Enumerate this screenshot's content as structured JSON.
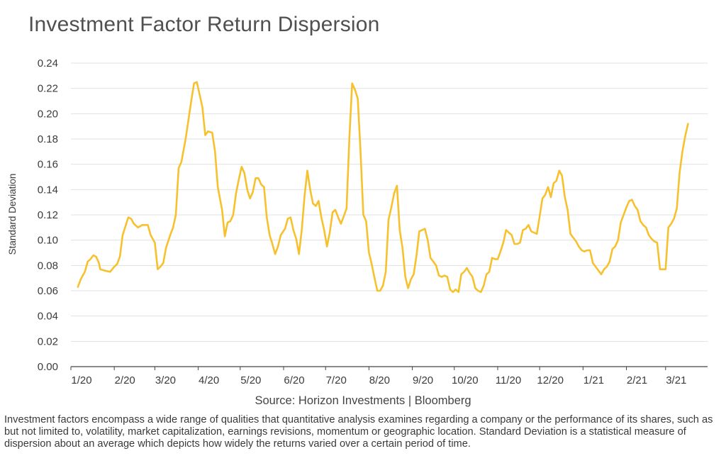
{
  "title": "Investment Factor Return Dispersion",
  "source": "Source: Horizon Investments | Bloomberg",
  "footnote": "Investment factors encompass a wide range of qualities that quantitative analysis examines regarding a company or the performance of its shares, such as but not limited to, volatility, market capitalization, earnings revisions, momentum or geographic location. Standard Deviation is a statistical measure of dispersion about an average which depicts how widely the returns varied over a certain period of time.",
  "colors": {
    "line": "#F7C12E",
    "grid": "#e1e1e1",
    "axis": "#444444"
  },
  "chart_data": {
    "type": "line",
    "ylabel": "Standard Deviation",
    "ylim": [
      0,
      0.24
    ],
    "yticks": [
      "0.00",
      "0.02",
      "0.04",
      "0.06",
      "0.08",
      "0.10",
      "0.12",
      "0.14",
      "0.16",
      "0.18",
      "0.20",
      "0.22",
      "0.24"
    ],
    "xlim": [
      "2020-01-01",
      "2021-03-31"
    ],
    "xticks": [
      {
        "label": "1/20",
        "date": "2020-01-01"
      },
      {
        "label": "2/20",
        "date": "2020-02-01"
      },
      {
        "label": "3/20",
        "date": "2020-03-01"
      },
      {
        "label": "4/20",
        "date": "2020-04-01"
      },
      {
        "label": "5/20",
        "date": "2020-05-01"
      },
      {
        "label": "6/20",
        "date": "2020-06-01"
      },
      {
        "label": "7/20",
        "date": "2020-07-01"
      },
      {
        "label": "8/20",
        "date": "2020-08-01"
      },
      {
        "label": "9/20",
        "date": "2020-09-01"
      },
      {
        "label": "10/20",
        "date": "2020-10-01"
      },
      {
        "label": "11/20",
        "date": "2020-11-01"
      },
      {
        "label": "12/20",
        "date": "2020-12-01"
      },
      {
        "label": "1/21",
        "date": "2021-01-01"
      },
      {
        "label": "2/21",
        "date": "2021-02-01"
      },
      {
        "label": "3/21",
        "date": "2021-03-01"
      }
    ],
    "grid": true,
    "series": [
      {
        "values": [
          [
            "2020-01-06",
            0.063
          ],
          [
            "2020-01-08",
            0.069
          ],
          [
            "2020-01-11",
            0.075
          ],
          [
            "2020-01-13",
            0.083
          ],
          [
            "2020-01-15",
            0.085
          ],
          [
            "2020-01-17",
            0.088
          ],
          [
            "2020-01-19",
            0.087
          ],
          [
            "2020-01-21",
            0.082
          ],
          [
            "2020-01-22",
            0.077
          ],
          [
            "2020-01-25",
            0.076
          ],
          [
            "2020-01-29",
            0.075
          ],
          [
            "2020-02-01",
            0.079
          ],
          [
            "2020-02-03",
            0.081
          ],
          [
            "2020-02-05",
            0.087
          ],
          [
            "2020-02-07",
            0.104
          ],
          [
            "2020-02-09",
            0.111
          ],
          [
            "2020-02-11",
            0.118
          ],
          [
            "2020-02-13",
            0.117
          ],
          [
            "2020-02-15",
            0.113
          ],
          [
            "2020-02-18",
            0.11
          ],
          [
            "2020-02-21",
            0.112
          ],
          [
            "2020-02-25",
            0.112
          ],
          [
            "2020-02-27",
            0.104
          ],
          [
            "2020-03-01",
            0.098
          ],
          [
            "2020-03-03",
            0.077
          ],
          [
            "2020-03-05",
            0.079
          ],
          [
            "2020-03-07",
            0.082
          ],
          [
            "2020-03-09",
            0.094
          ],
          [
            "2020-03-12",
            0.104
          ],
          [
            "2020-03-14",
            0.11
          ],
          [
            "2020-03-16",
            0.12
          ],
          [
            "2020-03-18",
            0.157
          ],
          [
            "2020-03-20",
            0.162
          ],
          [
            "2020-03-23",
            0.18
          ],
          [
            "2020-03-25",
            0.195
          ],
          [
            "2020-03-27",
            0.21
          ],
          [
            "2020-03-29",
            0.224
          ],
          [
            "2020-03-31",
            0.225
          ],
          [
            "2020-04-02",
            0.215
          ],
          [
            "2020-04-04",
            0.205
          ],
          [
            "2020-04-06",
            0.183
          ],
          [
            "2020-04-08",
            0.186
          ],
          [
            "2020-04-11",
            0.185
          ],
          [
            "2020-04-13",
            0.17
          ],
          [
            "2020-04-15",
            0.142
          ],
          [
            "2020-04-18",
            0.124
          ],
          [
            "2020-04-20",
            0.103
          ],
          [
            "2020-04-22",
            0.114
          ],
          [
            "2020-04-24",
            0.115
          ],
          [
            "2020-04-26",
            0.12
          ],
          [
            "2020-04-28",
            0.137
          ],
          [
            "2020-04-30",
            0.148
          ],
          [
            "2020-05-02",
            0.158
          ],
          [
            "2020-05-04",
            0.153
          ],
          [
            "2020-05-06",
            0.14
          ],
          [
            "2020-05-08",
            0.133
          ],
          [
            "2020-05-10",
            0.138
          ],
          [
            "2020-05-12",
            0.149
          ],
          [
            "2020-05-14",
            0.149
          ],
          [
            "2020-05-16",
            0.144
          ],
          [
            "2020-05-18",
            0.142
          ],
          [
            "2020-05-20",
            0.118
          ],
          [
            "2020-05-22",
            0.104
          ],
          [
            "2020-05-24",
            0.097
          ],
          [
            "2020-05-26",
            0.089
          ],
          [
            "2020-05-28",
            0.095
          ],
          [
            "2020-05-30",
            0.104
          ],
          [
            "2020-06-02",
            0.109
          ],
          [
            "2020-06-04",
            0.117
          ],
          [
            "2020-06-06",
            0.118
          ],
          [
            "2020-06-08",
            0.108
          ],
          [
            "2020-06-10",
            0.101
          ],
          [
            "2020-06-12",
            0.089
          ],
          [
            "2020-06-14",
            0.108
          ],
          [
            "2020-06-16",
            0.135
          ],
          [
            "2020-06-18",
            0.155
          ],
          [
            "2020-06-20",
            0.14
          ],
          [
            "2020-06-22",
            0.129
          ],
          [
            "2020-06-24",
            0.127
          ],
          [
            "2020-06-26",
            0.131
          ],
          [
            "2020-06-28",
            0.118
          ],
          [
            "2020-06-30",
            0.108
          ],
          [
            "2020-07-02",
            0.095
          ],
          [
            "2020-07-04",
            0.106
          ],
          [
            "2020-07-06",
            0.122
          ],
          [
            "2020-07-08",
            0.124
          ],
          [
            "2020-07-10",
            0.118
          ],
          [
            "2020-07-12",
            0.113
          ],
          [
            "2020-07-14",
            0.119
          ],
          [
            "2020-07-16",
            0.125
          ],
          [
            "2020-07-18",
            0.181
          ],
          [
            "2020-07-20",
            0.224
          ],
          [
            "2020-07-22",
            0.219
          ],
          [
            "2020-07-24",
            0.212
          ],
          [
            "2020-07-26",
            0.17
          ],
          [
            "2020-07-28",
            0.12
          ],
          [
            "2020-07-30",
            0.115
          ],
          [
            "2020-08-01",
            0.09
          ],
          [
            "2020-08-03",
            0.081
          ],
          [
            "2020-08-05",
            0.07
          ],
          [
            "2020-08-07",
            0.06
          ],
          [
            "2020-08-09",
            0.06
          ],
          [
            "2020-08-11",
            0.064
          ],
          [
            "2020-08-13",
            0.075
          ],
          [
            "2020-08-15",
            0.116
          ],
          [
            "2020-08-17",
            0.126
          ],
          [
            "2020-08-19",
            0.137
          ],
          [
            "2020-08-21",
            0.143
          ],
          [
            "2020-08-23",
            0.108
          ],
          [
            "2020-08-25",
            0.094
          ],
          [
            "2020-08-27",
            0.071
          ],
          [
            "2020-08-29",
            0.062
          ],
          [
            "2020-08-31",
            0.069
          ],
          [
            "2020-09-02",
            0.073
          ],
          [
            "2020-09-04",
            0.088
          ],
          [
            "2020-09-06",
            0.107
          ],
          [
            "2020-09-08",
            0.108
          ],
          [
            "2020-09-10",
            0.109
          ],
          [
            "2020-09-12",
            0.1
          ],
          [
            "2020-09-14",
            0.086
          ],
          [
            "2020-09-16",
            0.083
          ],
          [
            "2020-09-18",
            0.08
          ],
          [
            "2020-09-20",
            0.072
          ],
          [
            "2020-09-22",
            0.071
          ],
          [
            "2020-09-24",
            0.072
          ],
          [
            "2020-09-26",
            0.071
          ],
          [
            "2020-09-28",
            0.061
          ],
          [
            "2020-09-30",
            0.059
          ],
          [
            "2020-10-02",
            0.061
          ],
          [
            "2020-10-04",
            0.059
          ],
          [
            "2020-10-06",
            0.073
          ],
          [
            "2020-10-08",
            0.075
          ],
          [
            "2020-10-10",
            0.078
          ],
          [
            "2020-10-12",
            0.074
          ],
          [
            "2020-10-14",
            0.071
          ],
          [
            "2020-10-16",
            0.062
          ],
          [
            "2020-10-18",
            0.06
          ],
          [
            "2020-10-20",
            0.059
          ],
          [
            "2020-10-22",
            0.064
          ],
          [
            "2020-10-24",
            0.073
          ],
          [
            "2020-10-26",
            0.075
          ],
          [
            "2020-10-28",
            0.086
          ],
          [
            "2020-10-30",
            0.085
          ],
          [
            "2020-11-01",
            0.085
          ],
          [
            "2020-11-03",
            0.091
          ],
          [
            "2020-11-05",
            0.098
          ],
          [
            "2020-11-07",
            0.108
          ],
          [
            "2020-11-09",
            0.106
          ],
          [
            "2020-11-11",
            0.104
          ],
          [
            "2020-11-13",
            0.097
          ],
          [
            "2020-11-15",
            0.097
          ],
          [
            "2020-11-17",
            0.098
          ],
          [
            "2020-11-19",
            0.108
          ],
          [
            "2020-11-21",
            0.109
          ],
          [
            "2020-11-23",
            0.112
          ],
          [
            "2020-11-25",
            0.107
          ],
          [
            "2020-11-27",
            0.106
          ],
          [
            "2020-11-29",
            0.105
          ],
          [
            "2020-12-01",
            0.119
          ],
          [
            "2020-12-03",
            0.133
          ],
          [
            "2020-12-05",
            0.136
          ],
          [
            "2020-12-07",
            0.142
          ],
          [
            "2020-12-09",
            0.134
          ],
          [
            "2020-12-11",
            0.145
          ],
          [
            "2020-12-13",
            0.147
          ],
          [
            "2020-12-15",
            0.155
          ],
          [
            "2020-12-17",
            0.151
          ],
          [
            "2020-12-19",
            0.134
          ],
          [
            "2020-12-21",
            0.124
          ],
          [
            "2020-12-23",
            0.105
          ],
          [
            "2020-12-25",
            0.102
          ],
          [
            "2020-12-27",
            0.099
          ],
          [
            "2020-12-29",
            0.095
          ],
          [
            "2020-12-31",
            0.092
          ],
          [
            "2021-01-02",
            0.091
          ],
          [
            "2021-01-04",
            0.092
          ],
          [
            "2021-01-06",
            0.092
          ],
          [
            "2021-01-08",
            0.082
          ],
          [
            "2021-01-10",
            0.079
          ],
          [
            "2021-01-12",
            0.076
          ],
          [
            "2021-01-14",
            0.073
          ],
          [
            "2021-01-16",
            0.077
          ],
          [
            "2021-01-18",
            0.079
          ],
          [
            "2021-01-20",
            0.083
          ],
          [
            "2021-01-22",
            0.093
          ],
          [
            "2021-01-24",
            0.095
          ],
          [
            "2021-01-26",
            0.1
          ],
          [
            "2021-01-28",
            0.114
          ],
          [
            "2021-01-30",
            0.12
          ],
          [
            "2021-02-01",
            0.126
          ],
          [
            "2021-02-03",
            0.131
          ],
          [
            "2021-02-05",
            0.132
          ],
          [
            "2021-02-07",
            0.127
          ],
          [
            "2021-02-09",
            0.124
          ],
          [
            "2021-02-11",
            0.115
          ],
          [
            "2021-02-13",
            0.112
          ],
          [
            "2021-02-15",
            0.11
          ],
          [
            "2021-02-17",
            0.104
          ],
          [
            "2021-02-19",
            0.101
          ],
          [
            "2021-02-21",
            0.099
          ],
          [
            "2021-02-23",
            0.098
          ],
          [
            "2021-02-25",
            0.077
          ],
          [
            "2021-02-27",
            0.077
          ],
          [
            "2021-03-01",
            0.077
          ],
          [
            "2021-03-03",
            0.11
          ],
          [
            "2021-03-05",
            0.113
          ],
          [
            "2021-03-07",
            0.117
          ],
          [
            "2021-03-09",
            0.125
          ],
          [
            "2021-03-11",
            0.153
          ],
          [
            "2021-03-13",
            0.17
          ],
          [
            "2021-03-15",
            0.182
          ],
          [
            "2021-03-17",
            0.192
          ]
        ]
      }
    ]
  }
}
